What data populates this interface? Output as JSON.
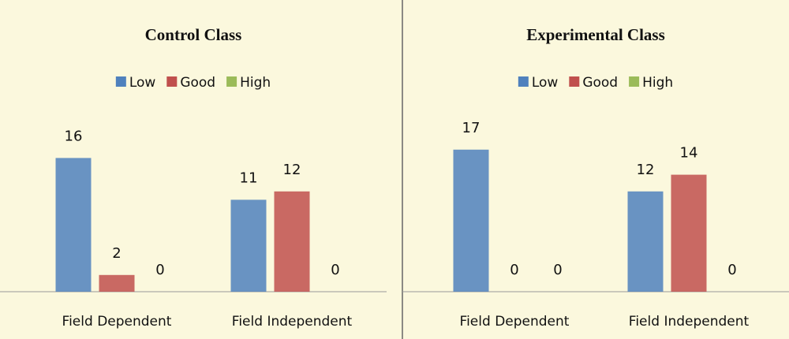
{
  "chart_data": [
    {
      "type": "bar",
      "title": "Control Class",
      "categories": [
        "Field Dependent",
        "Field Independent"
      ],
      "series": [
        {
          "name": "Low",
          "color": "#4f81bd",
          "values": [
            16,
            11
          ]
        },
        {
          "name": "Good",
          "color": "#c0504d",
          "values": [
            2,
            12
          ]
        },
        {
          "name": "High",
          "color": "#9bbb59",
          "values": [
            0,
            0
          ]
        }
      ]
    },
    {
      "type": "bar",
      "title": "Experimental Class",
      "categories": [
        "Field Dependent",
        "Field Independent"
      ],
      "series": [
        {
          "name": "Low",
          "color": "#4f81bd",
          "values": [
            17,
            12
          ]
        },
        {
          "name": "Good",
          "color": "#c0504d",
          "values": [
            0,
            14
          ]
        },
        {
          "name": "High",
          "color": "#9bbb59",
          "values": [
            0,
            0
          ]
        }
      ]
    }
  ]
}
